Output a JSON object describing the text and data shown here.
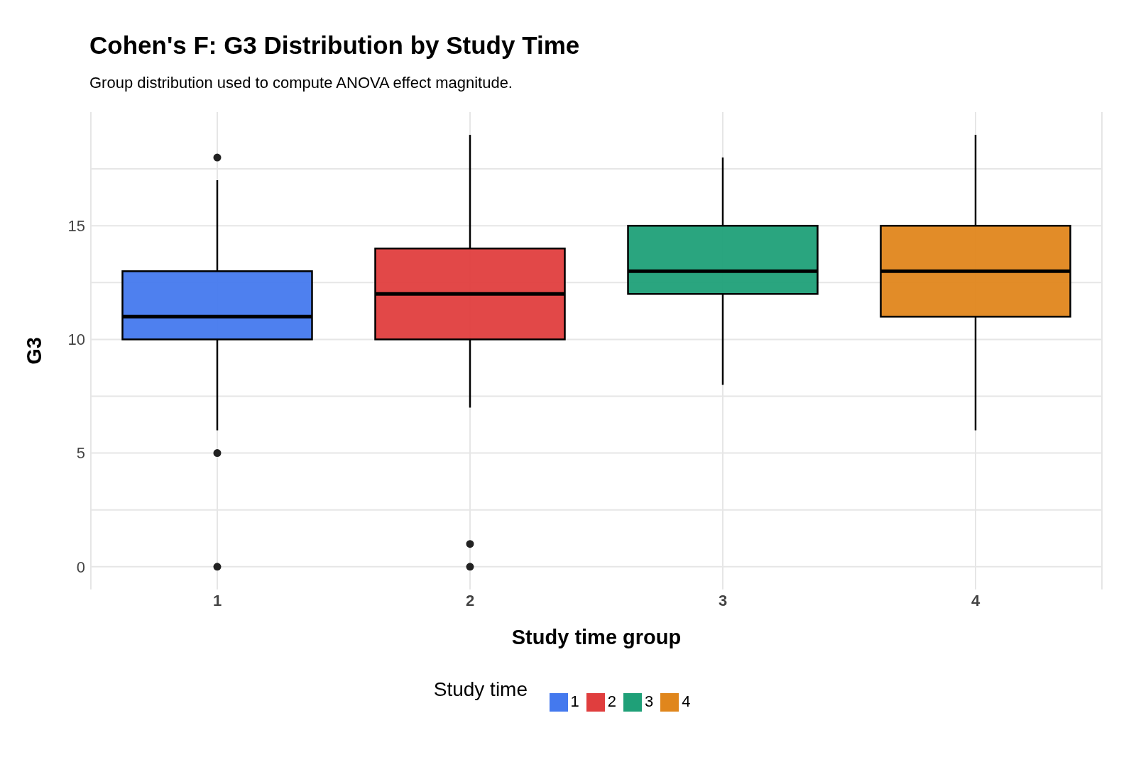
{
  "chart_data": {
    "type": "box",
    "title": "Cohen's F: G3 Distribution by Study Time",
    "subtitle": "Group distribution used to compute ANOVA effect magnitude.",
    "xlabel": "Study time group",
    "ylabel": "G3",
    "legend_title": "Study time",
    "legend": "bottom",
    "grid": true,
    "categories": [
      "1",
      "2",
      "3",
      "4"
    ],
    "series": [
      {
        "name": "1",
        "color": "#4479ee",
        "boxes": [
          {
            "low": 6,
            "q1": 10,
            "median": 11,
            "q3": 13,
            "high": 17,
            "outliers": [
              18,
              5,
              0
            ]
          },
          null,
          null,
          null
        ]
      },
      {
        "name": "2",
        "color": "#e03e3e",
        "boxes": [
          null,
          {
            "low": 7,
            "q1": 10,
            "median": 12,
            "q3": 14,
            "high": 19,
            "outliers": [
              1,
              0
            ]
          },
          null,
          null
        ]
      },
      {
        "name": "3",
        "color": "#1fa078",
        "boxes": [
          null,
          null,
          {
            "low": 8,
            "q1": 12,
            "median": 13,
            "q3": 15,
            "high": 18
          },
          null
        ]
      },
      {
        "name": "4",
        "color": "#e0861c",
        "boxes": [
          null,
          null,
          null,
          {
            "low": 6,
            "q1": 11,
            "median": 13,
            "q3": 15,
            "high": 19
          }
        ]
      }
    ],
    "ylim": [
      -1,
      20
    ],
    "yticks": [
      0,
      5,
      10,
      15
    ]
  }
}
